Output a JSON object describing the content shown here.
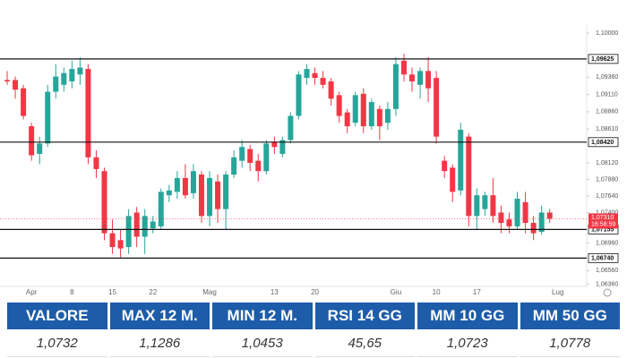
{
  "chart_data": {
    "type": "candlestick",
    "categories": [
      null,
      null,
      null,
      "Apr",
      null,
      null,
      null,
      null,
      "8",
      null,
      null,
      null,
      null,
      "15",
      null,
      null,
      null,
      null,
      "22",
      null,
      null,
      null,
      null,
      null,
      null,
      "Mag",
      null,
      null,
      null,
      null,
      null,
      null,
      null,
      "13",
      null,
      null,
      null,
      null,
      "20",
      null,
      null,
      null,
      null,
      null,
      null,
      null,
      null,
      null,
      "Giu",
      null,
      null,
      null,
      null,
      "10",
      null,
      null,
      null,
      null,
      "17",
      null,
      null,
      null,
      null,
      null,
      null,
      null,
      null,
      null,
      "Lug"
    ],
    "open": [
      1.0932,
      1.0932,
      1.092,
      1.0865,
      1.0825,
      1.084,
      1.0915,
      1.0925,
      1.093,
      1.094,
      1.0948,
      1.082,
      1.08,
      1.071,
      1.07,
      1.069,
      1.074,
      1.0705,
      1.0717,
      1.072,
      1.0765,
      1.077,
      1.079,
      1.0768,
      1.0795,
      1.0735,
      1.0785,
      1.0745,
      1.0795,
      1.0815,
      1.0832,
      1.0815,
      1.08,
      1.0842,
      1.0825,
      1.0845,
      1.088,
      1.0935,
      1.0942,
      1.0935,
      1.093,
      1.091,
      1.0885,
      1.087,
      1.0912,
      1.0865,
      1.089,
      1.087,
      1.089,
      1.096,
      1.094,
      1.0925,
      1.0945,
      1.0935,
      1.0815,
      1.0805,
      1.0772,
      1.085,
      1.0735,
      1.0745,
      1.0765,
      1.074,
      1.073,
      1.072,
      1.0755,
      1.0725,
      1.0712,
      1.074,
      null
    ],
    "high": [
      1.0945,
      1.0937,
      1.0925,
      1.087,
      1.085,
      1.0925,
      1.0955,
      1.095,
      1.096,
      1.0965,
      1.0955,
      1.083,
      1.0805,
      1.073,
      1.0715,
      1.0745,
      1.0748,
      1.0745,
      1.0735,
      1.0775,
      1.078,
      1.08,
      1.081,
      1.081,
      1.08,
      1.08,
      1.0795,
      1.08,
      1.083,
      1.0845,
      1.0838,
      1.0825,
      1.0845,
      1.085,
      1.085,
      1.0885,
      1.0945,
      1.0955,
      1.095,
      1.0945,
      1.0935,
      1.0915,
      1.089,
      1.0915,
      1.092,
      1.0905,
      1.0895,
      1.09,
      1.0965,
      1.097,
      1.095,
      1.095,
      1.0965,
      1.0945,
      1.0822,
      1.081,
      1.087,
      1.0855,
      1.0775,
      1.077,
      1.079,
      1.075,
      1.074,
      1.077,
      1.077,
      1.0735,
      1.075,
      1.0745,
      null
    ],
    "low": [
      1.0925,
      1.0905,
      1.0875,
      1.0815,
      1.081,
      1.0835,
      1.0905,
      1.0915,
      1.092,
      1.0925,
      1.081,
      1.079,
      1.07,
      1.068,
      1.0675,
      1.068,
      1.069,
      1.068,
      1.071,
      1.0715,
      1.0755,
      1.076,
      1.076,
      1.076,
      1.0725,
      1.072,
      1.0725,
      1.0715,
      1.079,
      1.0805,
      1.08,
      1.0785,
      1.0795,
      1.0825,
      1.082,
      1.084,
      1.0875,
      1.0925,
      1.0925,
      1.092,
      1.0895,
      1.087,
      1.0855,
      1.0865,
      1.0855,
      1.086,
      1.0845,
      1.086,
      1.088,
      1.093,
      1.0915,
      1.0905,
      1.09,
      1.084,
      1.079,
      1.0755,
      1.0765,
      1.072,
      1.0715,
      1.0735,
      1.0725,
      1.071,
      1.071,
      1.0715,
      1.071,
      1.07,
      1.0708,
      1.0725,
      null
    ],
    "close": [
      1.093,
      1.0918,
      1.088,
      1.0823,
      1.084,
      1.0915,
      1.0937,
      1.0942,
      1.0948,
      1.095,
      1.082,
      1.0803,
      1.071,
      1.069,
      1.0688,
      1.0735,
      1.0705,
      1.0735,
      1.0727,
      1.077,
      1.0772,
      1.079,
      1.0765,
      1.08,
      1.0735,
      1.079,
      1.0745,
      1.0795,
      1.082,
      1.0835,
      1.0812,
      1.08,
      1.084,
      1.0835,
      1.0845,
      1.088,
      1.094,
      1.0948,
      1.0935,
      1.0925,
      1.0905,
      1.088,
      1.0865,
      1.091,
      1.0865,
      1.09,
      1.0865,
      1.089,
      1.0955,
      1.094,
      1.093,
      1.0945,
      1.092,
      1.085,
      1.08,
      1.077,
      1.086,
      1.0735,
      1.0765,
      1.0765,
      1.0735,
      1.0725,
      1.072,
      1.076,
      1.0725,
      1.071,
      1.074,
      1.0731,
      null
    ],
    "up_color": "#26a69a",
    "down_color": "#f23645",
    "ylim": [
      1.0633,
      1.1009
    ],
    "yticks": [
      {
        "value": 1.1,
        "label": "1,10000"
      },
      {
        "value": 1.0936,
        "label": "1,09360"
      },
      {
        "value": 1.0911,
        "label": "1,09110"
      },
      {
        "value": 1.0886,
        "label": "1,08860"
      },
      {
        "value": 1.0861,
        "label": "1,08610"
      },
      {
        "value": 1.0812,
        "label": "1,08120"
      },
      {
        "value": 1.0788,
        "label": "1,07880"
      },
      {
        "value": 1.0764,
        "label": "1,07640"
      },
      {
        "value": 1.074,
        "label": "1,07400"
      },
      {
        "value": 1.0696,
        "label": "1,06960"
      },
      {
        "value": 1.0656,
        "label": "1,06560"
      },
      {
        "value": 1.0636,
        "label": "1,06360"
      }
    ],
    "levels": [
      {
        "value": 1.09625,
        "label": "1,09625"
      },
      {
        "value": 1.0842,
        "label": "1,08420"
      },
      {
        "value": 1.07155,
        "label": "1,07155"
      },
      {
        "value": 1.0674,
        "label": "1,06740"
      }
    ],
    "last_price": {
      "value": 1.0731,
      "label": "1,07310",
      "time": "16:58:59"
    },
    "grid": false
  },
  "table": {
    "headers": [
      "VALORE",
      "MAX 12 M.",
      "MIN 12 M.",
      "RSI 14 GG",
      "MM 10 GG",
      "MM 50 GG"
    ],
    "rows": [
      [
        "1,0732",
        "1,1286",
        "1,0453",
        "45,65",
        "1,0723",
        "1,0778"
      ]
    ]
  }
}
